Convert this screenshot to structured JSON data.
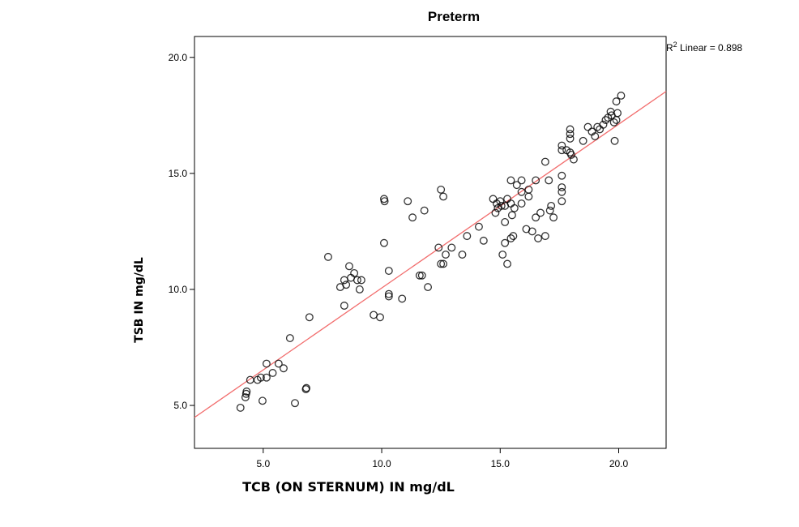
{
  "chart_data": {
    "type": "scatter",
    "title": "Preterm",
    "xlabel": "TCB (ON STERNUM) IN mg/dL",
    "ylabel": "TSB IN mg/dL",
    "xlim": [
      2.1,
      22.0
    ],
    "ylim": [
      3.15,
      20.9
    ],
    "xticks": [
      "5.0",
      "10.0",
      "15.0",
      "20.0"
    ],
    "yticks": [
      "5.0",
      "10.0",
      "15.0",
      "20.0"
    ],
    "grid": false,
    "fit_line": {
      "type": "linear",
      "slope": 0.706,
      "intercept": 3.0,
      "color": "#f26d6d"
    },
    "annotation": {
      "r2_prefix": "R",
      "r2_sup": "2",
      "r2_text": " Linear = 0.898"
    },
    "marker_color": "#000000",
    "points": [
      [
        4.04,
        4.9
      ],
      [
        4.25,
        5.35
      ],
      [
        4.3,
        5.6
      ],
      [
        4.28,
        5.5
      ],
      [
        4.45,
        6.1
      ],
      [
        4.76,
        6.1
      ],
      [
        4.9,
        6.2
      ],
      [
        5.14,
        6.2
      ],
      [
        4.97,
        5.2
      ],
      [
        5.14,
        6.8
      ],
      [
        5.4,
        6.4
      ],
      [
        5.65,
        6.8
      ],
      [
        5.86,
        6.6
      ],
      [
        6.13,
        7.9
      ],
      [
        6.34,
        5.1
      ],
      [
        6.8,
        5.7
      ],
      [
        6.82,
        5.75
      ],
      [
        6.95,
        8.8
      ],
      [
        7.74,
        11.4
      ],
      [
        8.42,
        9.3
      ],
      [
        8.63,
        11.0
      ],
      [
        8.25,
        10.1
      ],
      [
        8.42,
        10.4
      ],
      [
        8.5,
        10.2
      ],
      [
        8.7,
        10.5
      ],
      [
        8.84,
        10.7
      ],
      [
        8.97,
        10.4
      ],
      [
        9.07,
        10.0
      ],
      [
        9.14,
        10.4
      ],
      [
        9.66,
        8.9
      ],
      [
        9.93,
        8.8
      ],
      [
        10.1,
        12.0
      ],
      [
        10.1,
        13.9
      ],
      [
        10.12,
        13.8
      ],
      [
        10.3,
        10.8
      ],
      [
        10.3,
        9.8
      ],
      [
        10.3,
        9.7
      ],
      [
        10.86,
        9.6
      ],
      [
        11.1,
        13.8
      ],
      [
        11.3,
        13.1
      ],
      [
        11.8,
        13.4
      ],
      [
        11.6,
        10.6
      ],
      [
        11.7,
        10.6
      ],
      [
        11.95,
        10.1
      ],
      [
        12.5,
        14.3
      ],
      [
        12.6,
        14.0
      ],
      [
        12.4,
        11.8
      ],
      [
        12.5,
        11.1
      ],
      [
        12.6,
        11.1
      ],
      [
        12.7,
        11.5
      ],
      [
        12.95,
        11.8
      ],
      [
        13.4,
        11.5
      ],
      [
        13.6,
        12.3
      ],
      [
        14.1,
        12.7
      ],
      [
        14.3,
        12.1
      ],
      [
        14.7,
        13.9
      ],
      [
        15.0,
        13.8
      ],
      [
        15.45,
        13.7
      ],
      [
        15.2,
        13.6
      ],
      [
        14.9,
        13.5
      ],
      [
        14.8,
        13.3
      ],
      [
        15.6,
        13.5
      ],
      [
        15.9,
        13.7
      ],
      [
        15.5,
        13.2
      ],
      [
        15.2,
        12.9
      ],
      [
        15.45,
        14.7
      ],
      [
        15.7,
        14.5
      ],
      [
        15.9,
        14.2
      ],
      [
        15.9,
        14.7
      ],
      [
        16.2,
        14.3
      ],
      [
        16.2,
        14.0
      ],
      [
        16.5,
        14.7
      ],
      [
        17.05,
        14.7
      ],
      [
        16.9,
        15.5
      ],
      [
        17.15,
        13.6
      ],
      [
        17.25,
        13.1
      ],
      [
        17.1,
        13.4
      ],
      [
        16.7,
        13.3
      ],
      [
        16.5,
        13.1
      ],
      [
        16.1,
        12.6
      ],
      [
        16.35,
        12.5
      ],
      [
        16.6,
        12.2
      ],
      [
        16.9,
        12.3
      ],
      [
        15.55,
        12.3
      ],
      [
        15.45,
        12.2
      ],
      [
        15.2,
        12.0
      ],
      [
        15.1,
        11.5
      ],
      [
        15.3,
        11.1
      ],
      [
        14.85,
        13.7
      ],
      [
        15.05,
        13.6
      ],
      [
        15.3,
        13.9
      ],
      [
        17.6,
        14.9
      ],
      [
        17.6,
        14.4
      ],
      [
        17.6,
        14.2
      ],
      [
        17.6,
        13.8
      ],
      [
        17.6,
        16.2
      ],
      [
        17.6,
        16.0
      ],
      [
        17.8,
        16.0
      ],
      [
        17.95,
        15.9
      ],
      [
        18.0,
        15.8
      ],
      [
        18.1,
        15.6
      ],
      [
        17.95,
        16.9
      ],
      [
        17.95,
        16.7
      ],
      [
        17.95,
        16.5
      ],
      [
        18.5,
        16.4
      ],
      [
        18.7,
        17.0
      ],
      [
        18.87,
        16.8
      ],
      [
        19.0,
        16.6
      ],
      [
        19.1,
        17.0
      ],
      [
        19.2,
        16.9
      ],
      [
        19.35,
        17.1
      ],
      [
        19.45,
        17.3
      ],
      [
        19.55,
        17.4
      ],
      [
        19.66,
        17.66
      ],
      [
        19.7,
        17.5
      ],
      [
        19.8,
        17.2
      ],
      [
        19.9,
        17.3
      ],
      [
        19.95,
        17.6
      ],
      [
        19.83,
        16.4
      ],
      [
        19.9,
        18.1
      ],
      [
        20.1,
        18.35
      ]
    ]
  }
}
